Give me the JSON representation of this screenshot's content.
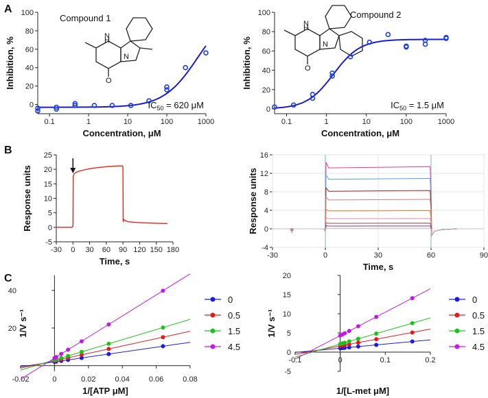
{
  "chart_data": [
    {
      "id": "A1",
      "panel_label": "A",
      "type": "scatter",
      "xscale": "log",
      "title": "Compound 1",
      "xlabel": "Concentration, μM",
      "ylabel": "Inhibition, %",
      "xlim": [
        0.05,
        1000
      ],
      "ylim": [
        -10,
        100
      ],
      "xticks": [
        0.1,
        1,
        10,
        100,
        1000
      ],
      "xtick_labels": [
        "0.1",
        "1",
        "10",
        "100",
        "1000"
      ],
      "yticks": [
        0,
        20,
        40,
        60,
        80,
        100
      ],
      "ytick_labels": [
        "0",
        "20",
        "40",
        "60",
        "80",
        "100"
      ],
      "points": [
        [
          0.05,
          -7
        ],
        [
          0.05,
          -4
        ],
        [
          0.15,
          -5
        ],
        [
          0.15,
          -3
        ],
        [
          0.45,
          1
        ],
        [
          0.45,
          -1
        ],
        [
          1.4,
          -1
        ],
        [
          4,
          -1
        ],
        [
          12,
          -1
        ],
        [
          35,
          4
        ],
        [
          100,
          19
        ],
        [
          100,
          16
        ],
        [
          300,
          40
        ],
        [
          1000,
          56
        ]
      ],
      "fit": {
        "model": "hill",
        "bottom": -3,
        "top": 105,
        "ic50": 620,
        "hill": 1.0
      },
      "annotation": {
        "prefix": "IC",
        "sub": "50",
        "value": " = 620 μM"
      },
      "colors": {
        "points": "#1a3ee6",
        "fit": "#1a1ad6"
      }
    },
    {
      "id": "A2",
      "type": "scatter",
      "xscale": "log",
      "title": "Compound 2",
      "xlabel": "Concentration, μM",
      "ylabel": "Inhibition, %",
      "xlim": [
        0.05,
        1000
      ],
      "ylim": [
        -5,
        100
      ],
      "xticks": [
        0.1,
        1,
        10,
        100,
        1000
      ],
      "xtick_labels": [
        "0.1",
        "1",
        "10",
        "100",
        "1000"
      ],
      "yticks": [
        0,
        20,
        40,
        60,
        80,
        100
      ],
      "ytick_labels": [
        "0",
        "20",
        "40",
        "60",
        "80",
        "100"
      ],
      "points": [
        [
          0.05,
          2
        ],
        [
          0.15,
          4
        ],
        [
          0.45,
          15
        ],
        [
          0.45,
          11
        ],
        [
          1.4,
          34
        ],
        [
          1.4,
          37
        ],
        [
          4,
          54
        ],
        [
          12,
          69
        ],
        [
          35,
          77
        ],
        [
          100,
          65
        ],
        [
          100,
          64
        ],
        [
          300,
          71
        ],
        [
          300,
          67
        ],
        [
          1000,
          74
        ],
        [
          1000,
          73
        ]
      ],
      "fit": {
        "model": "hill",
        "bottom": 0,
        "top": 72,
        "ic50": 1.5,
        "hill": 1.3
      },
      "annotation": {
        "prefix": "IC",
        "sub": "50",
        "value": " = 1.5 μM"
      },
      "colors": {
        "points": "#1a3ee6",
        "fit": "#1a1ad6"
      }
    },
    {
      "id": "B1",
      "panel_label": "B",
      "type": "line",
      "xlabel": "Time, s",
      "ylabel": "Response units",
      "xlim": [
        -30,
        180
      ],
      "ylim": [
        -5,
        25
      ],
      "xticks": [
        -30,
        0,
        30,
        60,
        90,
        120,
        150,
        180
      ],
      "xtick_labels": [
        "-30",
        "0",
        "30",
        "60",
        "90",
        "120",
        "150",
        "180"
      ],
      "yticks": [
        -5,
        0,
        5,
        10,
        15,
        20,
        25
      ],
      "ytick_labels": [
        "-5",
        "0",
        "5",
        "10",
        "15",
        "20",
        "25"
      ],
      "injection_arrow_x": 0,
      "series": [
        {
          "name": "sensorgram",
          "color": "#e3261c",
          "x": [
            -30,
            -2,
            0,
            0.5,
            2,
            5,
            10,
            20,
            30,
            45,
            60,
            75,
            89,
            90,
            90.5,
            91,
            95,
            100,
            120,
            150,
            170
          ],
          "y": [
            0,
            0,
            0.3,
            17.5,
            18.4,
            18.9,
            19.3,
            19.8,
            20.2,
            20.6,
            20.9,
            21.1,
            21.2,
            20.8,
            1.8,
            2.8,
            2.2,
            1.9,
            1.6,
            1.4,
            1.3
          ]
        }
      ]
    },
    {
      "id": "B2",
      "type": "line",
      "xlabel": "Time, s",
      "ylabel": "Response units",
      "xlim": [
        -30,
        90
      ],
      "ylim": [
        -4,
        16
      ],
      "xticks": [
        -30,
        0,
        30,
        60,
        90
      ],
      "xtick_labels": [
        "-30",
        "0",
        "30",
        "60",
        "90"
      ],
      "yticks": [
        -4,
        0,
        4,
        8,
        12,
        16
      ],
      "ytick_labels": [
        "-4",
        "0",
        "4",
        "8",
        "12",
        "16"
      ],
      "plateaus": [
        13.3,
        10.8,
        8.2,
        6.3,
        3.9,
        2.2,
        1.2,
        0.6,
        0.1
      ],
      "colors": [
        "#e83a8a",
        "#5aa0e0",
        "#8c2c2c",
        "#d08070",
        "#e07a30",
        "#e88ab0",
        "#b04040",
        "#7a3a7a",
        "#c0c0c0"
      ],
      "injection_start": 0,
      "injection_end": 60
    },
    {
      "id": "C1",
      "panel_label": "C",
      "type": "line",
      "xlabel": "1/[ATP μM]",
      "ylabel": "1/V s⁻¹",
      "xlim": [
        -0.02,
        0.08
      ],
      "ylim": [
        -3,
        48
      ],
      "xticks": [
        -0.02,
        0,
        0.02,
        0.04,
        0.06,
        0.08
      ],
      "xtick_labels": [
        "-0.02",
        "0",
        "0.02",
        "0.04",
        "0.06",
        "0.08"
      ],
      "yticks": [
        20,
        40
      ],
      "ytick_labels": [
        "20",
        "40"
      ],
      "line_xrange": [
        -0.02,
        0.08
      ],
      "series": [
        {
          "name": "0",
          "color": "#1a1ae6",
          "slope": 130,
          "intercept": 2.0,
          "x": [
            0,
            0.001,
            0.004,
            0.008,
            0.016,
            0.032,
            0.064
          ]
        },
        {
          "name": "0.5",
          "color": "#e31a1a",
          "slope": 196,
          "intercept": 2.6,
          "x": [
            0,
            0.001,
            0.004,
            0.008,
            0.016,
            0.032,
            0.064
          ]
        },
        {
          "name": "1.5",
          "color": "#1ac21a",
          "slope": 270,
          "intercept": 3.0,
          "x": [
            0,
            0.001,
            0.004,
            0.008,
            0.016,
            0.032,
            0.064
          ]
        },
        {
          "name": "4.5",
          "color": "#c21ae6",
          "slope": 560,
          "intercept": 4.0,
          "x": [
            0,
            0.001,
            0.004,
            0.008,
            0.016,
            0.032,
            0.064
          ]
        }
      ],
      "legend_position": "right"
    },
    {
      "id": "C2",
      "type": "line",
      "xlabel": "1/[L-met μM]",
      "ylabel": "1/V s⁻¹",
      "xlim": [
        -0.1,
        0.2
      ],
      "ylim": [
        -5,
        20
      ],
      "xticks": [
        -0.1,
        0,
        0.1,
        0.2
      ],
      "xtick_labels": [
        "-0.1",
        "0",
        "0.1",
        "0.2"
      ],
      "yticks": [
        -5,
        0,
        5,
        10,
        15,
        20
      ],
      "ytick_labels": [
        "-5",
        "0",
        "5",
        "10",
        "15",
        "20"
      ],
      "line_xrange": [
        -0.1,
        0.2
      ],
      "series": [
        {
          "name": "0",
          "color": "#1a1ae6",
          "slope": 11,
          "intercept": 1.0,
          "x": [
            0,
            0.005,
            0.01,
            0.02,
            0.04,
            0.08,
            0.16
          ]
        },
        {
          "name": "0.5",
          "color": "#e31a1a",
          "slope": 22,
          "intercept": 1.6,
          "x": [
            0,
            0.005,
            0.01,
            0.02,
            0.04,
            0.08,
            0.16
          ]
        },
        {
          "name": "1.5",
          "color": "#1ac21a",
          "slope": 34,
          "intercept": 2.1,
          "x": [
            0,
            0.005,
            0.01,
            0.02,
            0.04,
            0.08,
            0.16
          ]
        },
        {
          "name": "4.5",
          "color": "#c21ae6",
          "slope": 61,
          "intercept": 4.3,
          "x": [
            0,
            0.005,
            0.01,
            0.02,
            0.04,
            0.08,
            0.16
          ]
        }
      ],
      "legend_position": "right"
    }
  ]
}
